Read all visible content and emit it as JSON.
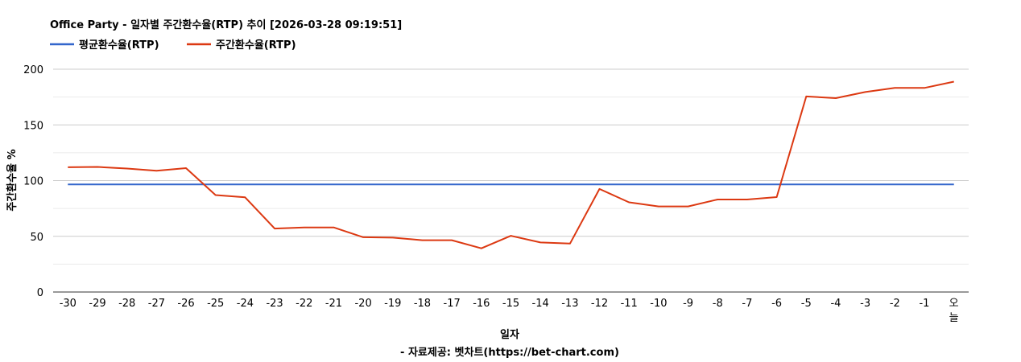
{
  "chart_data": {
    "type": "line",
    "title": "Office Party - 일자별 주간환수율(RTP) 추이 [2026-03-28 09:19:51]",
    "xlabel": "일자",
    "ylabel": "주간환수율 %",
    "source": "- 자료제공: 벳차트(https://bet-chart.com)",
    "categories": [
      "-30",
      "-29",
      "-28",
      "-27",
      "-26",
      "-25",
      "-24",
      "-23",
      "-22",
      "-21",
      "-20",
      "-19",
      "-18",
      "-17",
      "-16",
      "-15",
      "-14",
      "-13",
      "-12",
      "-11",
      "-10",
      "-9",
      "-8",
      "-7",
      "-6",
      "-5",
      "-4",
      "-3",
      "-2",
      "-1",
      "오늘"
    ],
    "ylim": [
      0,
      200
    ],
    "yticks": [
      0,
      50,
      100,
      150,
      200
    ],
    "grid": true,
    "legend_position": "top-left",
    "series": [
      {
        "name": "평균환수율(RTP)",
        "color": "#3366cc",
        "values": [
          96.5,
          96.5,
          96.5,
          96.5,
          96.5,
          96.5,
          96.5,
          96.5,
          96.5,
          96.5,
          96.5,
          96.5,
          96.5,
          96.5,
          96.5,
          96.5,
          96.5,
          96.5,
          96.5,
          96.5,
          96.5,
          96.5,
          96.5,
          96.5,
          96.5,
          96.5,
          96.5,
          96.5,
          96.5,
          96.5,
          96.5
        ]
      },
      {
        "name": "주간환수율(RTP)",
        "color": "#dc3912",
        "values": [
          112,
          112.3,
          110.8,
          108.8,
          111.2,
          87,
          85,
          57,
          58,
          58,
          49.2,
          48.8,
          46.5,
          46.5,
          39.2,
          50.5,
          44.5,
          43.5,
          92.5,
          80.5,
          76.8,
          76.8,
          83,
          83,
          85.2,
          175.5,
          174,
          179.5,
          183.2,
          183.2,
          188.8
        ]
      }
    ]
  }
}
